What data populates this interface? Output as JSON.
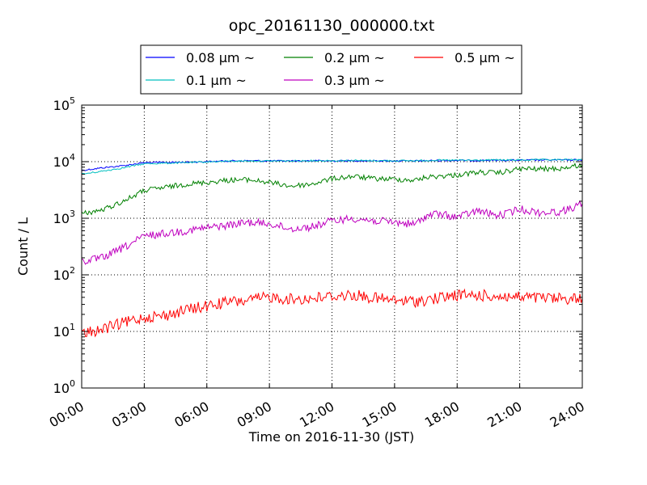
{
  "chart_data": {
    "type": "line",
    "title": "opc_20161130_000000.txt",
    "xlabel": "Time on 2016-11-30 (JST)",
    "ylabel": "Count / L",
    "x_scale": "time",
    "y_scale": "log",
    "xlim": [
      "00:00",
      "24:00"
    ],
    "ylim": [
      1,
      100000
    ],
    "x_ticks": [
      "00:00",
      "03:00",
      "06:00",
      "09:00",
      "12:00",
      "15:00",
      "18:00",
      "21:00",
      "24:00"
    ],
    "y_ticks": [
      {
        "base": "10",
        "exp": "0",
        "value": 1
      },
      {
        "base": "10",
        "exp": "1",
        "value": 10
      },
      {
        "base": "10",
        "exp": "2",
        "value": 100
      },
      {
        "base": "10",
        "exp": "3",
        "value": 1000
      },
      {
        "base": "10",
        "exp": "4",
        "value": 10000
      },
      {
        "base": "10",
        "exp": "5",
        "value": 100000
      }
    ],
    "grid": true,
    "legend_position": "top-center",
    "series": [
      {
        "name": "0.08 μm ~",
        "color": "#0000ff",
        "x": [
          "00:00",
          "01:00",
          "02:00",
          "03:00",
          "04:00",
          "05:00",
          "06:00",
          "07:00",
          "08:00",
          "09:00",
          "10:00",
          "11:00",
          "12:00",
          "13:00",
          "14:00",
          "15:00",
          "16:00",
          "17:00",
          "18:00",
          "19:00",
          "20:00",
          "21:00",
          "22:00",
          "23:00",
          "24:00"
        ],
        "values": [
          7000,
          7800,
          8500,
          9600,
          9700,
          9800,
          10000,
          10300,
          10400,
          10300,
          10300,
          10400,
          10300,
          10400,
          10400,
          10300,
          10300,
          10500,
          10500,
          10500,
          10600,
          10600,
          10700,
          10700,
          10800
        ]
      },
      {
        "name": "0.1 μm ~",
        "color": "#00bfbf",
        "x": [
          "00:00",
          "01:00",
          "02:00",
          "03:00",
          "04:00",
          "05:00",
          "06:00",
          "07:00",
          "08:00",
          "09:00",
          "10:00",
          "11:00",
          "12:00",
          "13:00",
          "14:00",
          "15:00",
          "16:00",
          "17:00",
          "18:00",
          "19:00",
          "20:00",
          "21:00",
          "22:00",
          "23:00",
          "24:00"
        ],
        "values": [
          6000,
          6800,
          7800,
          9200,
          9400,
          9600,
          9900,
          10200,
          10300,
          10300,
          10300,
          10400,
          10400,
          10500,
          10400,
          10400,
          10400,
          10600,
          10600,
          10600,
          10700,
          10700,
          10800,
          10800,
          10900
        ]
      },
      {
        "name": "0.2 μm ~",
        "color": "#008000",
        "x": [
          "00:00",
          "01:00",
          "02:00",
          "03:00",
          "04:00",
          "05:00",
          "06:00",
          "07:00",
          "08:00",
          "09:00",
          "10:00",
          "11:00",
          "12:00",
          "13:00",
          "14:00",
          "15:00",
          "16:00",
          "16:30",
          "17:00",
          "18:00",
          "19:00",
          "20:00",
          "21:00",
          "22:00",
          "23:00",
          "24:00"
        ],
        "values": [
          1200,
          1400,
          2000,
          3100,
          3500,
          4000,
          4300,
          4700,
          4800,
          4300,
          3700,
          4000,
          5000,
          5500,
          5000,
          4900,
          4700,
          5300,
          5500,
          5800,
          6500,
          6300,
          7500,
          7400,
          7600,
          8800
        ]
      },
      {
        "name": "0.3 μm ~",
        "color": "#bf00bf",
        "x": [
          "00:00",
          "01:00",
          "02:00",
          "03:00",
          "04:00",
          "05:00",
          "06:00",
          "07:00",
          "08:00",
          "09:00",
          "10:00",
          "11:00",
          "12:00",
          "13:00",
          "14:00",
          "15:00",
          "16:00",
          "16:30",
          "17:00",
          "18:00",
          "19:00",
          "20:00",
          "21:00",
          "22:00",
          "23:00",
          "24:00"
        ],
        "values": [
          170,
          200,
          300,
          480,
          540,
          600,
          680,
          750,
          850,
          800,
          650,
          700,
          900,
          1000,
          900,
          850,
          780,
          1100,
          1200,
          1050,
          1350,
          1100,
          1450,
          1250,
          1300,
          1800
        ]
      },
      {
        "name": "0.5 μm ~",
        "color": "#ff0000",
        "x": [
          "00:00",
          "01:00",
          "02:00",
          "03:00",
          "04:00",
          "05:00",
          "06:00",
          "07:00",
          "08:00",
          "09:00",
          "10:00",
          "11:00",
          "12:00",
          "13:00",
          "14:00",
          "15:00",
          "16:00",
          "17:00",
          "18:00",
          "19:00",
          "20:00",
          "21:00",
          "22:00",
          "23:00",
          "24:00"
        ],
        "values": [
          9,
          11,
          14,
          18,
          19,
          24,
          28,
          33,
          35,
          41,
          37,
          38,
          42,
          44,
          39,
          35,
          34,
          38,
          44,
          43,
          42,
          40,
          39,
          38,
          38
        ]
      }
    ]
  }
}
